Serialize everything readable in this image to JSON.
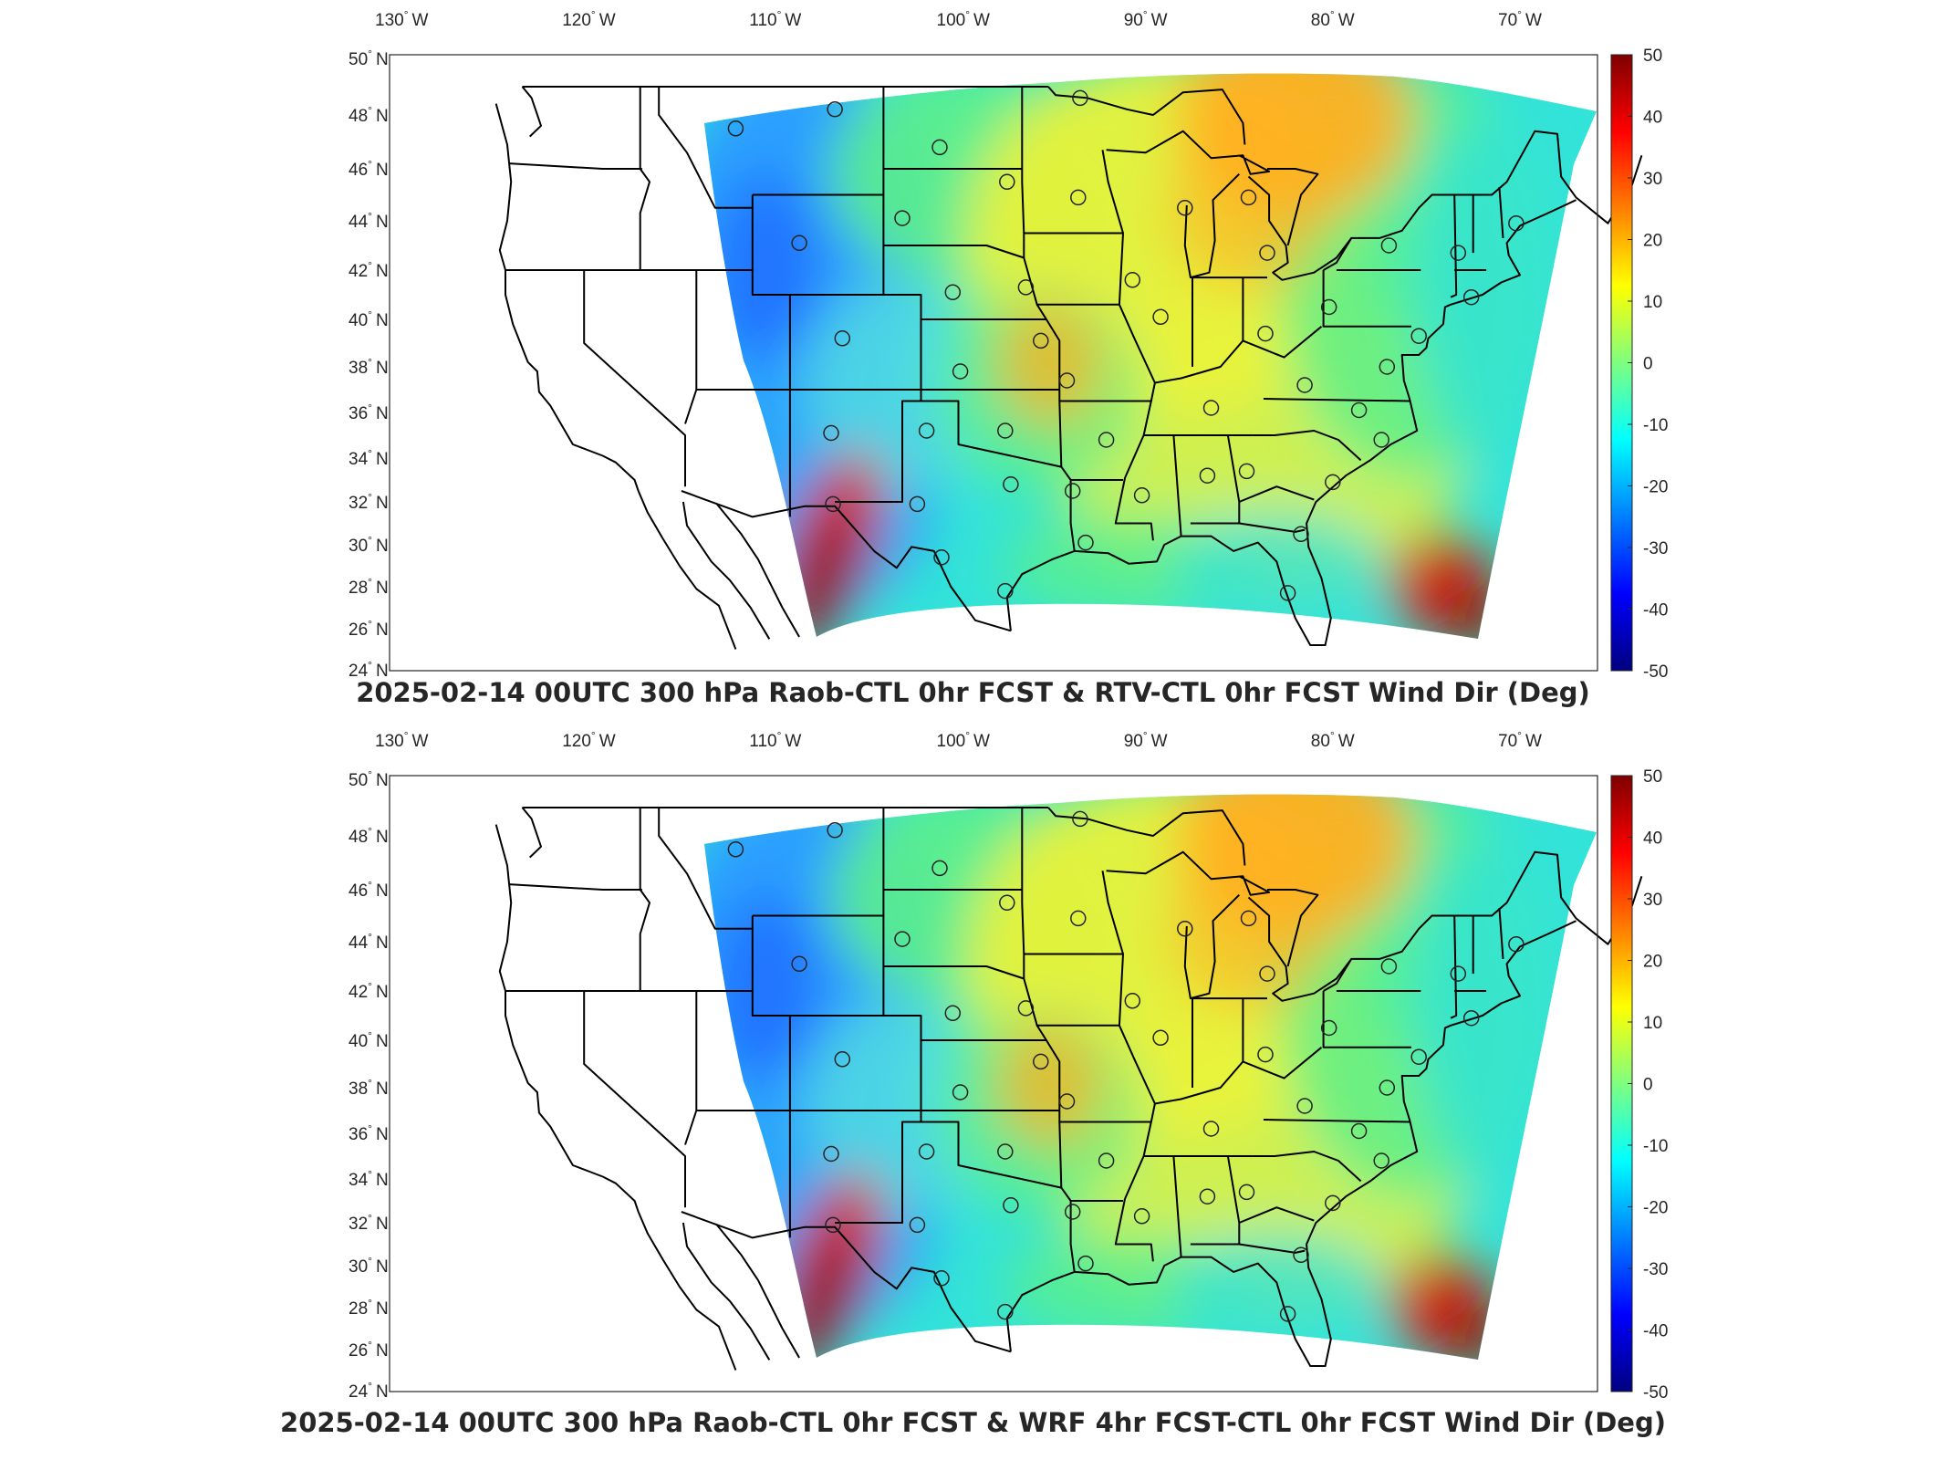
{
  "panels": [
    {
      "id": "top",
      "title": "2025-02-14 00UTC 300 hPa Raob-CTL 0hr FCST & RTV-CTL 0hr FCST Wind Dir (Deg)"
    },
    {
      "id": "bottom",
      "title": "2025-02-14 00UTC 300 hPa Raob-CTL 0hr FCST & WRF 4hr FCST-CTL 0hr FCST Wind Dir (Deg)"
    }
  ],
  "lon_ticks": [
    "130",
    "120",
    "110",
    "100",
    "90",
    "80",
    "70"
  ],
  "lon_suffix": "W",
  "lat_ticks": [
    "50",
    "48",
    "46",
    "44",
    "42",
    "40",
    "38",
    "36",
    "34",
    "32",
    "30",
    "28",
    "26",
    "24"
  ],
  "lat_suffix": "N",
  "degree_symbol": "°",
  "colorbar": {
    "ticks": [
      "50",
      "40",
      "30",
      "20",
      "10",
      "0",
      "-10",
      "-20",
      "-30",
      "-40",
      "-50"
    ],
    "range": [
      -50,
      50
    ],
    "colormap": "jet",
    "colors": [
      "#00007f",
      "#0000ff",
      "#007fff",
      "#00ffff",
      "#7fff7f",
      "#ffff00",
      "#ff7f00",
      "#ff0000",
      "#7f0000"
    ]
  },
  "field_colors": {
    "background": "#33e3d8",
    "west_blue": "#2a9fff",
    "deep_blue": "#1f6fff",
    "green": "#5cf08a",
    "yellow": "#e9f23a",
    "orange": "#ffb020",
    "red": "#d41c0a",
    "dark_red": "#8e0d06"
  },
  "raob_stations_lonlat": [
    [
      -111.9,
      47.5
    ],
    [
      -106.6,
      48.2
    ],
    [
      -101.0,
      46.8
    ],
    [
      -97.4,
      45.5
    ],
    [
      -93.5,
      48.6
    ],
    [
      -93.6,
      44.9
    ],
    [
      -108.5,
      43.1
    ],
    [
      -103.0,
      44.1
    ],
    [
      -100.3,
      41.1
    ],
    [
      -96.4,
      41.3
    ],
    [
      -90.7,
      41.6
    ],
    [
      -87.9,
      44.5
    ],
    [
      -84.5,
      44.9
    ],
    [
      -83.5,
      42.7
    ],
    [
      -80.2,
      40.5
    ],
    [
      -77.0,
      43.0
    ],
    [
      -73.3,
      42.7
    ],
    [
      -70.2,
      43.9
    ],
    [
      -72.6,
      40.9
    ],
    [
      -75.4,
      39.3
    ],
    [
      -77.1,
      38.0
    ],
    [
      -78.6,
      36.1
    ],
    [
      -81.5,
      37.2
    ],
    [
      -83.6,
      39.4
    ],
    [
      -89.2,
      40.1
    ],
    [
      -86.5,
      36.2
    ],
    [
      -92.1,
      34.8
    ],
    [
      -94.2,
      37.4
    ],
    [
      -95.6,
      39.1
    ],
    [
      -99.9,
      37.8
    ],
    [
      -106.2,
      39.2
    ],
    [
      -106.8,
      35.1
    ],
    [
      -101.7,
      35.2
    ],
    [
      -97.5,
      35.2
    ],
    [
      -97.2,
      32.8
    ],
    [
      -102.2,
      31.9
    ],
    [
      -106.7,
      31.9
    ],
    [
      -100.9,
      29.4
    ],
    [
      -97.5,
      27.8
    ],
    [
      -93.2,
      30.1
    ],
    [
      -93.9,
      32.5
    ],
    [
      -90.2,
      32.3
    ],
    [
      -86.7,
      33.2
    ],
    [
      -84.6,
      33.4
    ],
    [
      -80.0,
      32.9
    ],
    [
      -81.7,
      30.5
    ],
    [
      -82.4,
      27.7
    ],
    [
      -77.4,
      34.8
    ]
  ]
}
